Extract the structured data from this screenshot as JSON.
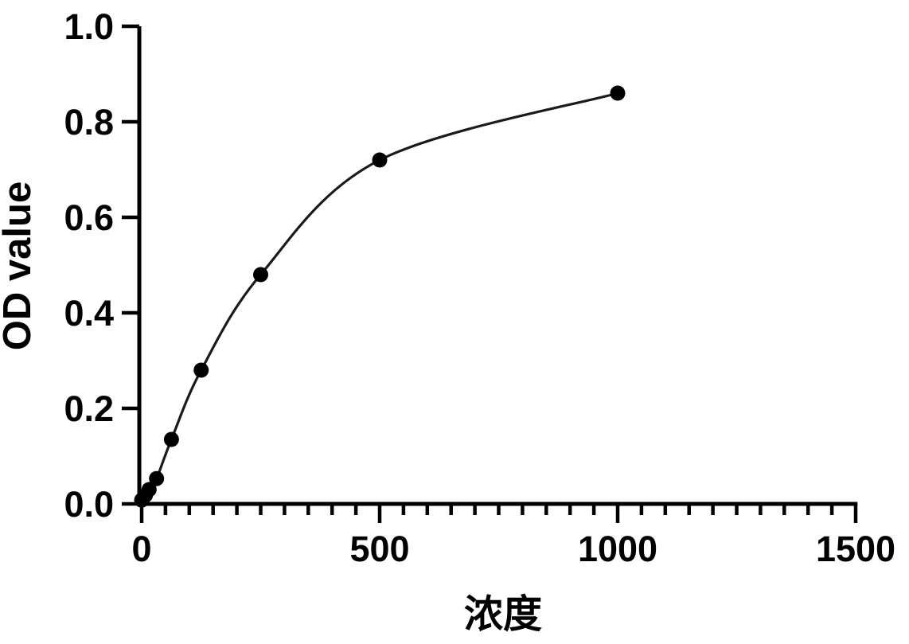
{
  "chart_data": {
    "type": "scatter",
    "title": "",
    "xlabel": "浓度",
    "ylabel": "OD value",
    "grid": false,
    "legend": null,
    "line_color": "#1a1a1a",
    "marker_color": "#000000",
    "axis_color": "#000000",
    "background_color": "#ffffff",
    "xlim": [
      0,
      1500
    ],
    "ylim": [
      0,
      1.0
    ],
    "x_ticks_major": [
      0,
      500,
      1000,
      1500
    ],
    "x_tick_labels": [
      "0",
      "500",
      "1000",
      "1500"
    ],
    "x_minor_step": 50,
    "y_ticks": [
      0.0,
      0.2,
      0.4,
      0.6,
      0.8,
      1.0
    ],
    "y_tick_labels": [
      "0.0",
      "0.2",
      "0.4",
      "0.6",
      "0.8",
      "1.0"
    ],
    "points": [
      {
        "x": 0,
        "y": 0.008
      },
      {
        "x": 7.8,
        "y": 0.018
      },
      {
        "x": 15.6,
        "y": 0.03
      },
      {
        "x": 31.25,
        "y": 0.053
      },
      {
        "x": 62.5,
        "y": 0.135
      },
      {
        "x": 125,
        "y": 0.28
      },
      {
        "x": 250,
        "y": 0.48
      },
      {
        "x": 500,
        "y": 0.72
      },
      {
        "x": 1000,
        "y": 0.86
      }
    ]
  }
}
